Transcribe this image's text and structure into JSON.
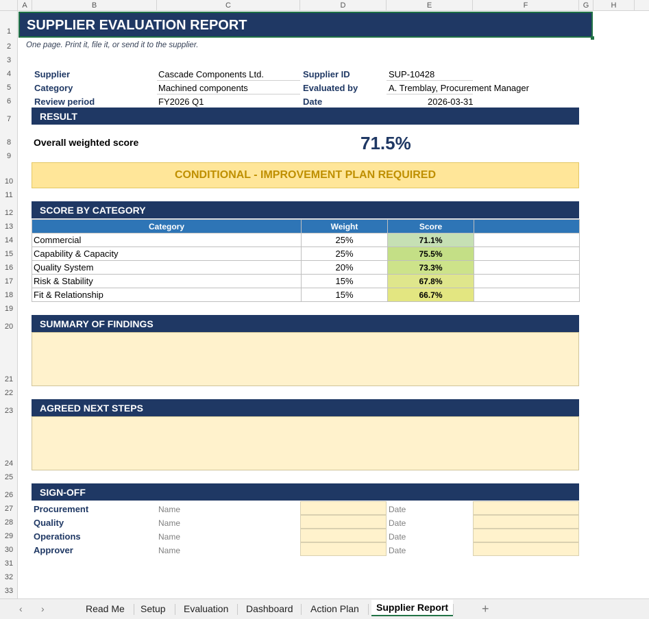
{
  "columns": [
    "A",
    "B",
    "C",
    "D",
    "E",
    "F",
    "G",
    "H"
  ],
  "rows": [
    "1",
    "2",
    "3",
    "4",
    "5",
    "6",
    "7",
    "8",
    "9",
    "10",
    "11",
    "12",
    "13",
    "14",
    "15",
    "16",
    "17",
    "18",
    "19",
    "20",
    "21",
    "22",
    "23",
    "24",
    "25",
    "26",
    "27",
    "28",
    "29",
    "30",
    "31",
    "32",
    "33"
  ],
  "title": "SUPPLIER EVALUATION REPORT",
  "subtitle": "One page. Print it, file it, or send it to the supplier.",
  "info": {
    "supplier_label": "Supplier",
    "supplier_value": "Cascade Components Ltd.",
    "supplier_id_label": "Supplier ID",
    "supplier_id_value": "SUP-10428",
    "category_label": "Category",
    "category_value": "Machined components",
    "evaluated_by_label": "Evaluated by",
    "evaluated_by_value": "A. Tremblay, Procurement Manager",
    "review_period_label": "Review period",
    "review_period_value": "FY2026 Q1",
    "date_label": "Date",
    "date_value": "2026-03-31"
  },
  "result": {
    "header": "RESULT",
    "score_label": "Overall weighted score",
    "score_value": "71.5%",
    "verdict": "CONDITIONAL - IMPROVEMENT PLAN REQUIRED"
  },
  "categories": {
    "header": "SCORE BY CATEGORY",
    "col_category": "Category",
    "col_weight": "Weight",
    "col_score": "Score",
    "rows": [
      {
        "name": "Commercial",
        "weight": "25%",
        "score": "71.1%",
        "color": "#c6e0b4"
      },
      {
        "name": "Capability & Capacity",
        "weight": "25%",
        "score": "75.5%",
        "color": "#c4df86"
      },
      {
        "name": "Quality System",
        "weight": "20%",
        "score": "73.3%",
        "color": "#cde38a"
      },
      {
        "name": "Risk & Stability",
        "weight": "15%",
        "score": "67.8%",
        "color": "#dfe68c"
      },
      {
        "name": "Fit & Relationship",
        "weight": "15%",
        "score": "66.7%",
        "color": "#e3e681"
      }
    ]
  },
  "findings": {
    "header": "SUMMARY OF FINDINGS"
  },
  "next_steps": {
    "header": "AGREED NEXT STEPS"
  },
  "signoff": {
    "header": "SIGN-OFF",
    "name_placeholder": "Name",
    "date_placeholder": "Date",
    "roles": [
      "Procurement",
      "Quality",
      "Operations",
      "Approver"
    ]
  },
  "tabs": [
    "Read Me",
    "Setup",
    "Evaluation",
    "Dashboard",
    "Action Plan",
    "Supplier Report"
  ],
  "active_tab": "Supplier Report",
  "colors": {
    "navy": "#1f3864",
    "table_header": "#2e75b6",
    "verdict_bg": "#ffe699",
    "verdict_text": "#bf8f00",
    "box_fill": "#fff2cc",
    "selection": "#217346"
  }
}
